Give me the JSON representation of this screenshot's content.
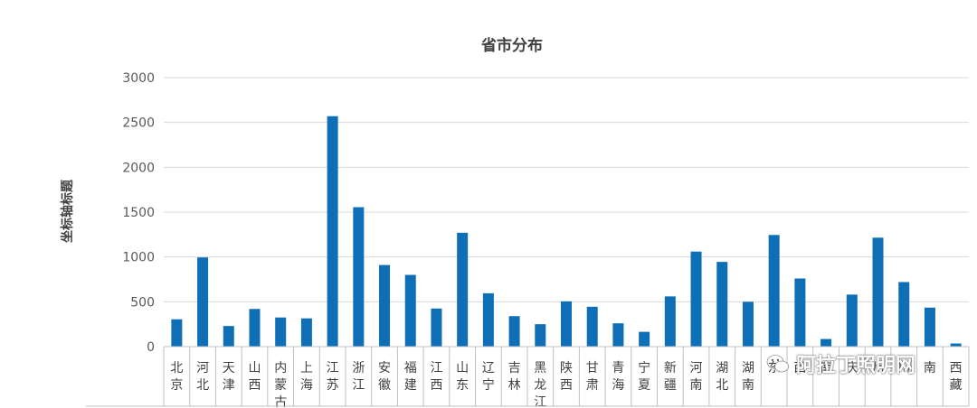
{
  "chart_data": {
    "type": "bar",
    "title": "省市分布",
    "ylabel": "坐标轴标题",
    "xlabel": "",
    "ylim": [
      0,
      3000
    ],
    "yticks": [
      "0",
      "500",
      "1000",
      "1500",
      "2000",
      "2500",
      "3000"
    ],
    "grid": true,
    "bar_color": "#0e6fb7",
    "categories": [
      "北京",
      "河北",
      "天津",
      "山西",
      "内蒙古",
      "上海",
      "江苏",
      "浙江",
      "安徽",
      "福建",
      "江西",
      "山东",
      "辽宁",
      "吉林",
      "黑龙江",
      "陕西",
      "甘肃",
      "青海",
      "宁夏",
      "新疆",
      "河南",
      "湖北",
      "湖南",
      "东",
      "西",
      "南",
      "庆",
      "州",
      "川",
      "南",
      "西藏"
    ],
    "values": [
      305,
      995,
      230,
      420,
      325,
      315,
      2570,
      1555,
      910,
      800,
      425,
      1270,
      595,
      340,
      250,
      505,
      445,
      260,
      165,
      560,
      1060,
      945,
      500,
      1245,
      760,
      85,
      580,
      1215,
      720,
      435,
      35
    ]
  },
  "watermark": {
    "text": "阿拉丁照明网",
    "icon": "wechat-icon"
  }
}
